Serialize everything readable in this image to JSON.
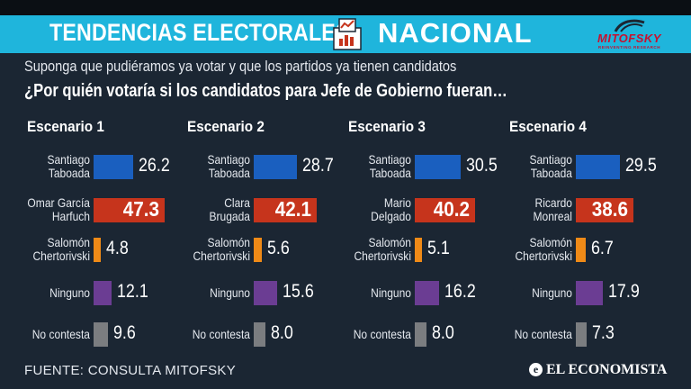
{
  "header": {
    "title_left": "TENDENCIAS ELECTORALES",
    "title_right": "NACIONAL",
    "logo_name": "MITOFSKY",
    "logo_tagline": "REINVENTING RESEARCH"
  },
  "subtitle": "Suponga que pudiéramos ya votar y que los partidos ya tienen candidatos",
  "question": "¿Por quién votaría si los candidatos para Jefe de Gobierno fueran…",
  "footer": {
    "source": "FUENTE: CONSULTA MITOFSKY",
    "publisher_initial": "e",
    "publisher": "EL ECONOMISTA"
  },
  "colors": {
    "blue": "#1a5fbf",
    "red": "#c6341c",
    "orange": "#ef8a17",
    "purple": "#6b3d93",
    "gray": "#7b7d80"
  },
  "chart_data": [
    {
      "type": "bar",
      "title": "Escenario 1",
      "categories": [
        "Santiago Taboada",
        "Omar García Harfuch",
        "Salomón Chertorivski",
        "Ninguno",
        "No contesta"
      ],
      "values": [
        26.2,
        47.3,
        4.8,
        12.1,
        9.6
      ],
      "value_labels": [
        "26.2",
        "47.3",
        "4.8",
        "12.1",
        "9.6"
      ],
      "colors": [
        "blue",
        "red",
        "orange",
        "purple",
        "gray"
      ]
    },
    {
      "type": "bar",
      "title": "Escenario 2",
      "categories": [
        "Santiago Taboada",
        "Clara Brugada",
        "Salomón Chertorivski",
        "Ninguno",
        "No contesta"
      ],
      "values": [
        28.7,
        42.1,
        5.6,
        15.6,
        8.0
      ],
      "value_labels": [
        "28.7",
        "42.1",
        "5.6",
        "15.6",
        "8.0"
      ],
      "colors": [
        "blue",
        "red",
        "orange",
        "purple",
        "gray"
      ]
    },
    {
      "type": "bar",
      "title": "Escenario 3",
      "categories": [
        "Santiago Taboada",
        "Mario Delgado",
        "Salomón Chertorivski",
        "Ninguno",
        "No contesta"
      ],
      "values": [
        30.5,
        40.2,
        5.1,
        16.2,
        8.0
      ],
      "value_labels": [
        "30.5",
        "40.2",
        "5.1",
        "16.2",
        "8.0"
      ],
      "colors": [
        "blue",
        "red",
        "orange",
        "purple",
        "gray"
      ]
    },
    {
      "type": "bar",
      "title": "Escenario 4",
      "categories": [
        "Santiago Taboada",
        "Ricardo Monreal",
        "Salomón Chertorivski",
        "Ninguno",
        "No contesta"
      ],
      "values": [
        29.5,
        38.6,
        6.7,
        17.9,
        7.3
      ],
      "value_labels": [
        "29.5",
        "38.6",
        "6.7",
        "17.9",
        "7.3"
      ],
      "colors": [
        "blue",
        "red",
        "orange",
        "purple",
        "gray"
      ]
    }
  ]
}
